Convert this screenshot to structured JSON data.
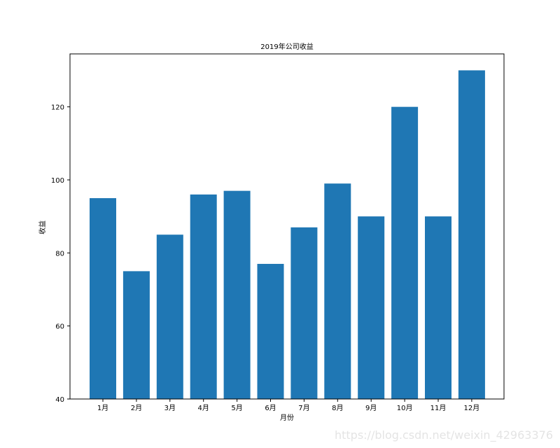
{
  "chart_data": {
    "type": "bar",
    "title": "2019年公司收益",
    "xlabel": "月份",
    "ylabel": "收益",
    "categories": [
      "1月",
      "2月",
      "3月",
      "4月",
      "5月",
      "6月",
      "7月",
      "8月",
      "9月",
      "10月",
      "11月",
      "12月"
    ],
    "values": [
      95,
      75,
      85,
      96,
      97,
      77,
      87,
      99,
      90,
      120,
      90,
      130
    ],
    "ylim": [
      40,
      134.5
    ],
    "yticks": [
      40,
      60,
      80,
      100,
      120
    ],
    "bar_color": "#1f77b4",
    "grid": false,
    "legend": "none"
  },
  "watermark": "https://blog.csdn.net/weixin_42963376"
}
